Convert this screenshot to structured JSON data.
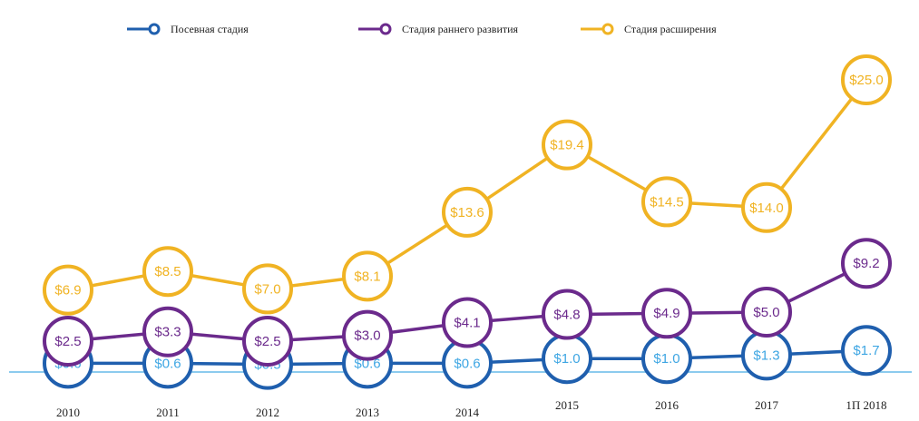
{
  "chart_data": {
    "type": "line",
    "categories": [
      "2010",
      "2011",
      "2012",
      "2013",
      "2014",
      "2015",
      "2016",
      "2017",
      "1П 2018"
    ],
    "series": [
      {
        "name": "Посевная стадия",
        "color": "#1f5fae",
        "label_color": "#3ea6e3",
        "values": [
          0.6,
          0.6,
          0.5,
          0.6,
          0.6,
          1.0,
          1.0,
          1.3,
          1.7
        ],
        "value_labels": [
          "$0.6",
          "$0.6",
          "$0.5",
          "$0.6",
          "$0.6",
          "$1.0",
          "$1.0",
          "$1.3",
          "$1.7"
        ]
      },
      {
        "name": "Стадия раннего развития",
        "color": "#6b2a8c",
        "label_color": "#6b2a8c",
        "values": [
          2.5,
          3.3,
          2.5,
          3.0,
          4.1,
          4.8,
          4.9,
          5.0,
          9.2
        ],
        "value_labels": [
          "$2.5",
          "$3.3",
          "$2.5",
          "$3.0",
          "$4.1",
          "$4.8",
          "$4.9",
          "$5.0",
          "$9.2"
        ]
      },
      {
        "name": "Стадия расширения",
        "color": "#f0b323",
        "label_color": "#f0b323",
        "values": [
          6.9,
          8.5,
          7.0,
          8.1,
          13.6,
          19.4,
          14.5,
          14.0,
          25.0
        ],
        "value_labels": [
          "$6.9",
          "$8.5",
          "$7.0",
          "$8.1",
          "$13.6",
          "$19.4",
          "$14.5",
          "$14.0",
          "$25.0"
        ]
      }
    ]
  }
}
